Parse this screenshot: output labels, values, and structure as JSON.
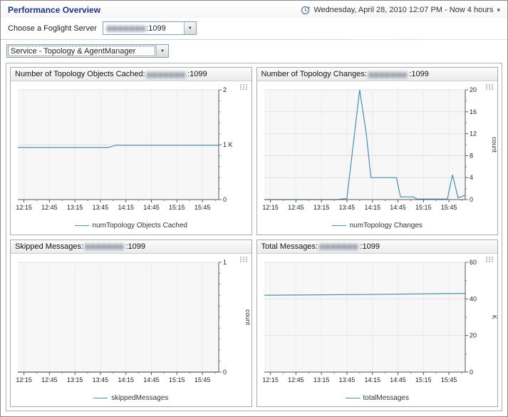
{
  "header": {
    "title": "Performance Overview",
    "timerange": "Wednesday, April 28, 2010 12:07 PM - Now 4 hours"
  },
  "icons": {
    "dropdown_arrow": "▼",
    "chevron_down": "▾"
  },
  "redacted": {
    "server_text": "▆▆▆▆▆▆▆"
  },
  "server_picker": {
    "label": "Choose a Foglight Server",
    "value_suffix": ":1099"
  },
  "service_picker": {
    "value": "Service - Topology & AgentManager"
  },
  "colors": {
    "line": "#4a8dae",
    "plot_bg": "#f7f7f7",
    "grid_h": "#e2e2e2",
    "grid_v": "#ececec",
    "axis": "#555555"
  },
  "chart_data": [
    {
      "type": "line",
      "title_prefix": "Number of Topology Objects Cached: ",
      "title_suffix": ":1099",
      "legend": "numTopology Objects Cached",
      "ylabel": "",
      "xlim": [
        12.13,
        16.07
      ],
      "ylim": [
        0,
        2
      ],
      "x_ticks": [
        "12:15",
        "12:45",
        "13:15",
        "13:45",
        "14:15",
        "14:45",
        "15:15",
        "15:45"
      ],
      "x_tick_hours": [
        12.25,
        12.75,
        13.25,
        13.75,
        14.25,
        14.75,
        15.25,
        15.75
      ],
      "yticks": [
        {
          "v": 0,
          "label": "0"
        },
        {
          "v": 1,
          "label": "1 K"
        },
        {
          "v": 2,
          "label": "2"
        }
      ],
      "y_minor_divs": 5,
      "points": [
        [
          12.13,
          0.95
        ],
        [
          13.9,
          0.95
        ],
        [
          14.05,
          0.99
        ],
        [
          16.07,
          0.99
        ]
      ]
    },
    {
      "type": "line",
      "title_prefix": "Number of Topology Changes: ",
      "title_suffix": ":1099",
      "legend": "numTopology Changes",
      "ylabel": "count",
      "xlim": [
        12.13,
        16.07
      ],
      "ylim": [
        0,
        20
      ],
      "x_ticks": [
        "12:15",
        "12:45",
        "13:15",
        "13:45",
        "14:15",
        "14:45",
        "15:15",
        "15:45"
      ],
      "x_tick_hours": [
        12.25,
        12.75,
        13.25,
        13.75,
        14.25,
        14.75,
        15.25,
        15.75
      ],
      "yticks": [
        {
          "v": 0,
          "label": "0"
        },
        {
          "v": 4,
          "label": "4"
        },
        {
          "v": 8,
          "label": "8"
        },
        {
          "v": 12,
          "label": "12"
        },
        {
          "v": 16,
          "label": "16"
        },
        {
          "v": 20,
          "label": "20"
        }
      ],
      "y_minor_divs": 2,
      "points": [
        [
          12.13,
          0
        ],
        [
          13.55,
          0
        ],
        [
          13.75,
          0.2
        ],
        [
          14.0,
          20
        ],
        [
          14.13,
          12
        ],
        [
          14.22,
          4
        ],
        [
          14.72,
          4
        ],
        [
          14.8,
          0.5
        ],
        [
          15.05,
          0.5
        ],
        [
          15.12,
          0.1
        ],
        [
          15.72,
          0.1
        ],
        [
          15.82,
          4.5
        ],
        [
          15.93,
          0.3
        ],
        [
          16.07,
          0.8
        ]
      ]
    },
    {
      "type": "line",
      "title_prefix": "Skipped Messages: ",
      "title_suffix": ":1099",
      "legend": "skippedMessages",
      "ylabel": "count",
      "xlim": [
        12.13,
        16.07
      ],
      "ylim": [
        0,
        1
      ],
      "x_ticks": [
        "12:15",
        "12:45",
        "13:15",
        "13:45",
        "14:15",
        "14:45",
        "15:15",
        "15:45"
      ],
      "x_tick_hours": [
        12.25,
        12.75,
        13.25,
        13.75,
        14.25,
        14.75,
        15.25,
        15.75
      ],
      "yticks": [
        {
          "v": 0,
          "label": "0"
        },
        {
          "v": 1,
          "label": "1"
        }
      ],
      "y_minor_divs": 10,
      "points": [
        [
          12.13,
          0
        ],
        [
          16.07,
          0
        ]
      ]
    },
    {
      "type": "line",
      "title_prefix": "Total Messages: ",
      "title_suffix": ":1099",
      "legend": "totalMessages",
      "ylabel": "K",
      "xlim": [
        12.13,
        16.07
      ],
      "ylim": [
        0,
        60
      ],
      "x_ticks": [
        "12:15",
        "12:45",
        "13:15",
        "13:45",
        "14:15",
        "14:45",
        "15:15",
        "15:45"
      ],
      "x_tick_hours": [
        12.25,
        12.75,
        13.25,
        13.75,
        14.25,
        14.75,
        15.25,
        15.75
      ],
      "yticks": [
        {
          "v": 0,
          "label": "0"
        },
        {
          "v": 20,
          "label": "20"
        },
        {
          "v": 40,
          "label": "40"
        },
        {
          "v": 60,
          "label": "60"
        }
      ],
      "y_minor_divs": 2,
      "points": [
        [
          12.13,
          42
        ],
        [
          14.0,
          42.4
        ],
        [
          16.07,
          43
        ]
      ]
    }
  ]
}
